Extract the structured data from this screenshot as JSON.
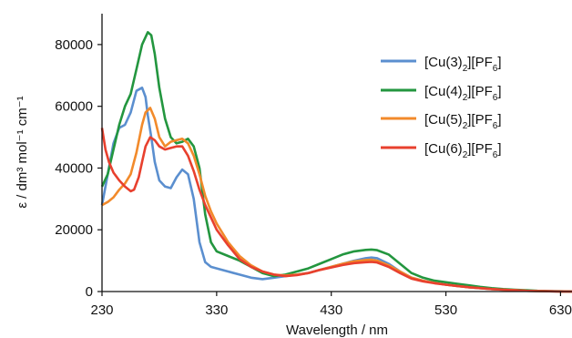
{
  "chart_data": {
    "type": "line",
    "xlabel": "Wavelength / nm",
    "ylabel": "ε / dm³ mol⁻¹ cm⁻¹",
    "xlim": [
      230,
      640
    ],
    "ylim": [
      0,
      90000
    ],
    "x_ticks": [
      230,
      330,
      430,
      530,
      630
    ],
    "y_ticks": [
      0,
      20000,
      40000,
      60000,
      80000
    ],
    "x_tick_labels": [
      "230",
      "330",
      "430",
      "530",
      "630"
    ],
    "y_tick_labels": [
      "0",
      "20000",
      "40000",
      "60000",
      "80000"
    ],
    "grid": false,
    "legend_position": "top-right",
    "series": [
      {
        "name": "[Cu(3)2][PF6]",
        "color": "#5b8fcf",
        "x": [
          230,
          235,
          240,
          245,
          250,
          255,
          260,
          265,
          268,
          270,
          273,
          276,
          280,
          285,
          290,
          295,
          300,
          305,
          310,
          315,
          320,
          325,
          330,
          340,
          350,
          360,
          370,
          380,
          390,
          400,
          410,
          420,
          430,
          440,
          450,
          460,
          465,
          470,
          480,
          490,
          500,
          510,
          520,
          530,
          540,
          550,
          560,
          570,
          580,
          590,
          600,
          610,
          620,
          630,
          640
        ],
        "y": [
          28000,
          38000,
          48000,
          53000,
          54000,
          58000,
          65000,
          66000,
          63000,
          57000,
          50000,
          42000,
          36000,
          34000,
          33500,
          37000,
          39500,
          38000,
          30000,
          16000,
          9500,
          8000,
          7500,
          6500,
          5500,
          4500,
          4000,
          4500,
          5000,
          5500,
          6000,
          7000,
          8000,
          9000,
          10000,
          10800,
          11000,
          10800,
          9000,
          6500,
          4500,
          3500,
          2800,
          2200,
          1800,
          1400,
          1100,
          800,
          600,
          400,
          250,
          150,
          80,
          20,
          0
        ]
      },
      {
        "name": "[Cu(4)2][PF6]",
        "color": "#23963f",
        "x": [
          230,
          235,
          240,
          245,
          250,
          255,
          260,
          265,
          270,
          273,
          276,
          280,
          285,
          290,
          295,
          300,
          305,
          310,
          315,
          320,
          325,
          330,
          340,
          350,
          360,
          370,
          380,
          390,
          400,
          410,
          420,
          430,
          440,
          450,
          460,
          465,
          470,
          480,
          490,
          500,
          510,
          520,
          530,
          540,
          550,
          560,
          570,
          580,
          590,
          600,
          610,
          620,
          630,
          640
        ],
        "y": [
          34000,
          38000,
          46000,
          54000,
          60000,
          64000,
          72000,
          80000,
          84000,
          83000,
          77000,
          66000,
          56000,
          50000,
          48000,
          48500,
          49500,
          47000,
          40000,
          25000,
          16000,
          13000,
          11500,
          10000,
          8000,
          6000,
          5000,
          5500,
          6500,
          7500,
          9000,
          10500,
          12000,
          13000,
          13500,
          13600,
          13400,
          12000,
          9000,
          6000,
          4500,
          3500,
          3000,
          2500,
          2000,
          1500,
          1100,
          800,
          600,
          400,
          250,
          150,
          80,
          0
        ]
      },
      {
        "name": "[Cu(5)2][PF6]",
        "color": "#f28a2b",
        "x": [
          230,
          235,
          240,
          245,
          250,
          255,
          260,
          265,
          268,
          272,
          276,
          280,
          285,
          290,
          295,
          300,
          305,
          310,
          315,
          320,
          325,
          330,
          340,
          350,
          360,
          370,
          380,
          390,
          400,
          410,
          420,
          430,
          440,
          450,
          460,
          465,
          470,
          480,
          490,
          500,
          510,
          520,
          530,
          540,
          550,
          560,
          570,
          580,
          590,
          600,
          610,
          620,
          630,
          640
        ],
        "y": [
          28000,
          29000,
          30500,
          33000,
          35000,
          38000,
          45000,
          54000,
          58000,
          59500,
          56000,
          50000,
          47000,
          48500,
          49000,
          49500,
          48000,
          44000,
          38000,
          31000,
          26000,
          22000,
          16000,
          11500,
          8500,
          6500,
          5500,
          5200,
          5500,
          6000,
          7000,
          8000,
          9000,
          9800,
          10200,
          10300,
          10000,
          8500,
          6500,
          4500,
          3500,
          2800,
          2200,
          1800,
          1400,
          1100,
          800,
          600,
          400,
          250,
          150,
          80,
          20,
          0
        ]
      },
      {
        "name": "[Cu(6)2][PF6]",
        "color": "#e8402e",
        "x": [
          230,
          233,
          236,
          240,
          245,
          250,
          255,
          258,
          262,
          265,
          268,
          272,
          276,
          280,
          285,
          290,
          295,
          300,
          305,
          310,
          315,
          320,
          325,
          330,
          340,
          350,
          360,
          370,
          380,
          390,
          400,
          410,
          420,
          430,
          440,
          450,
          460,
          465,
          470,
          480,
          490,
          500,
          510,
          520,
          530,
          540,
          550,
          560,
          570,
          580,
          590,
          600,
          610,
          620,
          630,
          640
        ],
        "y": [
          53000,
          46000,
          42000,
          38500,
          36000,
          34000,
          32500,
          33000,
          37000,
          42000,
          47000,
          50000,
          49000,
          47000,
          46000,
          46500,
          47000,
          47000,
          44000,
          39000,
          33000,
          28000,
          24000,
          20000,
          15000,
          10500,
          8000,
          6500,
          5500,
          5000,
          5300,
          6000,
          7000,
          7800,
          8600,
          9200,
          9500,
          9600,
          9400,
          8000,
          6000,
          4200,
          3300,
          2700,
          2200,
          1800,
          1400,
          1100,
          800,
          600,
          400,
          250,
          150,
          80,
          20,
          0
        ]
      }
    ]
  }
}
